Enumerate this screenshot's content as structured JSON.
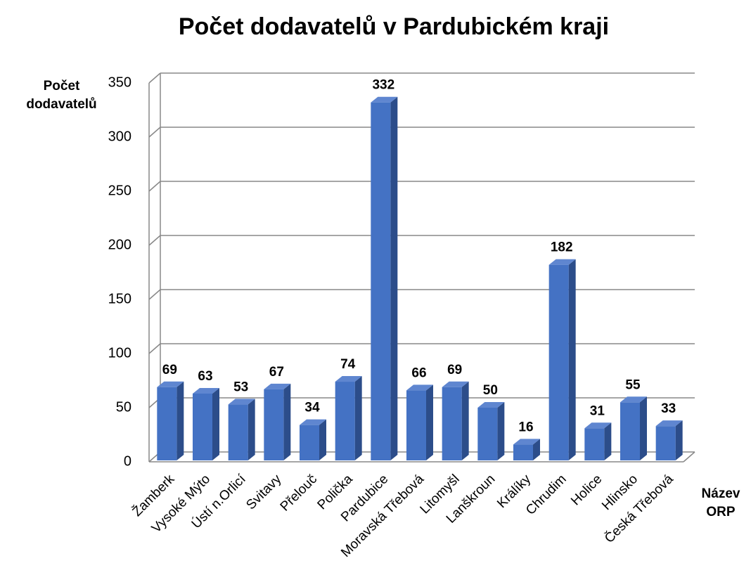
{
  "chart_data": {
    "type": "bar3d",
    "title": "Počet dodavatelů v Pardubickém kraji",
    "y_label": "Počet dodavatelů",
    "x_label": "Název ORP",
    "categories": [
      "Žamberk",
      "Vysoké Mýto",
      "Ústí n.Orlicí",
      "Svitavy",
      "Přelouč",
      "Polička",
      "Pardubice",
      "Moravská Třebová",
      "Litomyšl",
      "Lanškroun",
      "Králíky",
      "Chrudim",
      "Holice",
      "Hlinsko",
      "Česká Třebová"
    ],
    "values": [
      69,
      63,
      53,
      67,
      34,
      74,
      332,
      66,
      69,
      50,
      16,
      182,
      31,
      55,
      33
    ],
    "color": "#4472c4",
    "ylim": [
      0,
      350
    ],
    "yticks": [
      0,
      50,
      100,
      150,
      200,
      250,
      300,
      350
    ],
    "grid": true
  }
}
